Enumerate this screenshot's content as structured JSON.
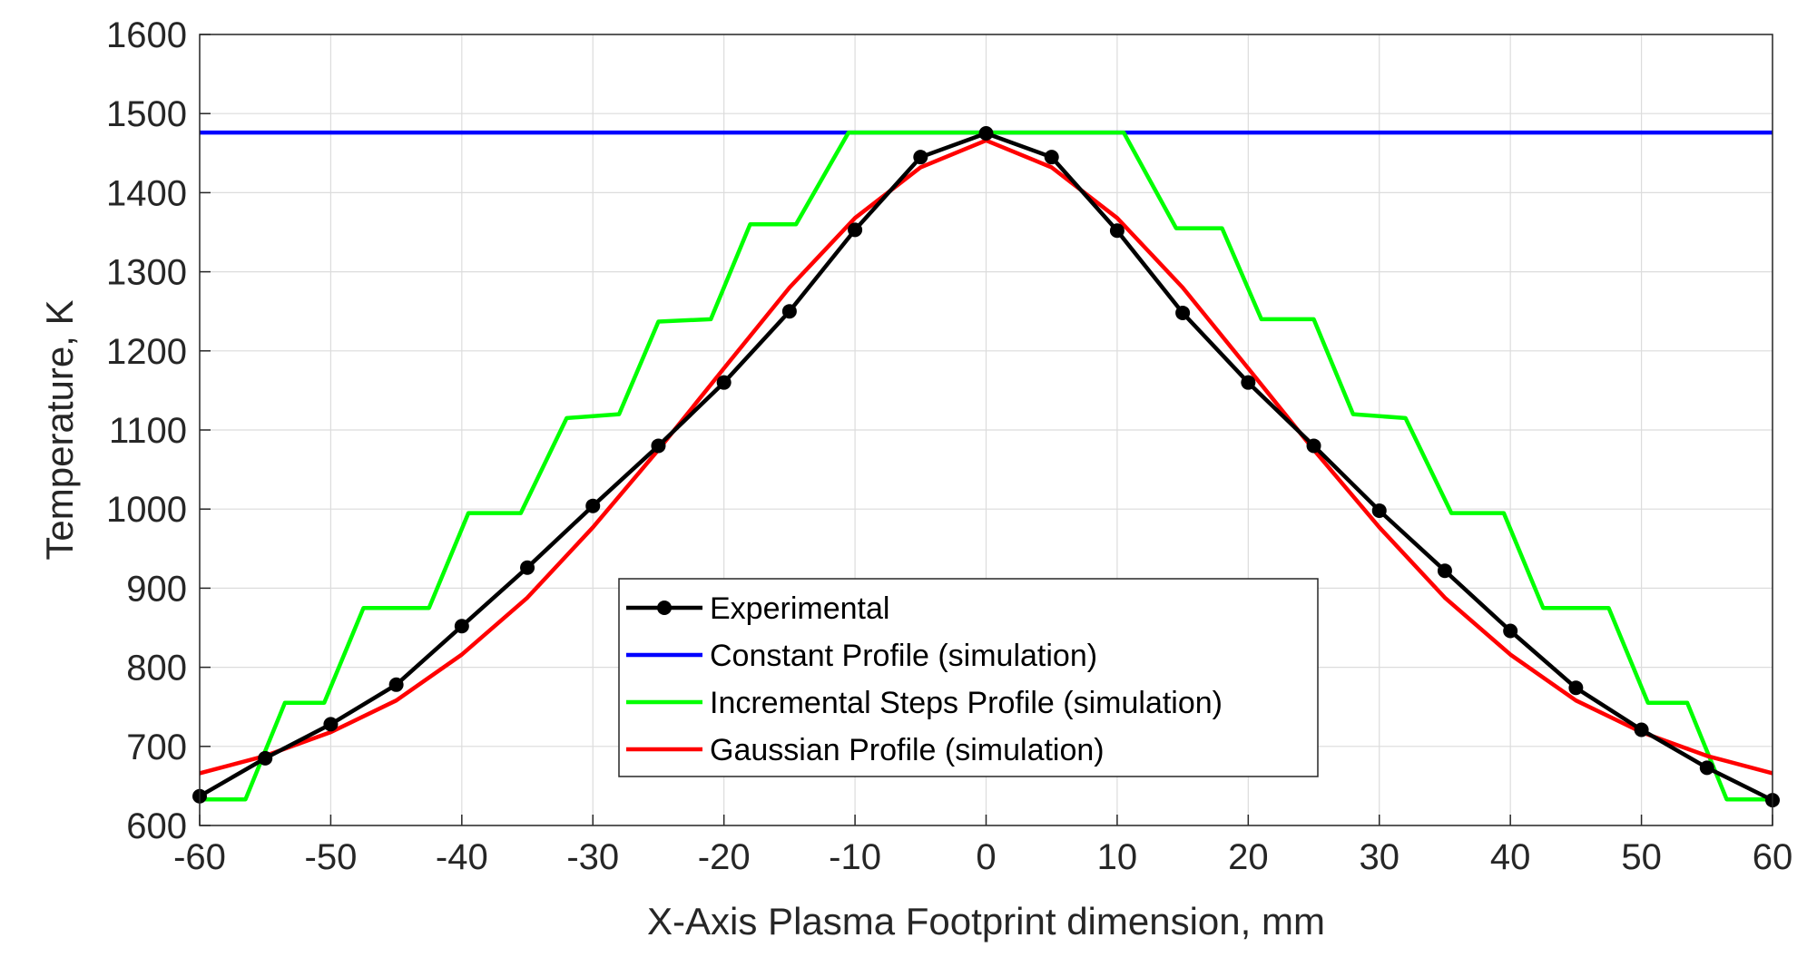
{
  "chart_data": {
    "type": "line",
    "title": "",
    "xlabel": "X-Axis Plasma Footprint dimension, mm",
    "ylabel": "Temperature, K",
    "xlim": [
      -60,
      60
    ],
    "ylim": [
      600,
      1600
    ],
    "xticks": [
      "-60",
      "-50",
      "-40",
      "-30",
      "-20",
      "-10",
      "0",
      "10",
      "20",
      "30",
      "40",
      "50",
      "60"
    ],
    "yticks": [
      "600",
      "700",
      "800",
      "900",
      "1000",
      "1100",
      "1200",
      "1300",
      "1400",
      "1500",
      "1600"
    ],
    "grid": true,
    "legend_position": "bottom-center",
    "series": [
      {
        "name": "Experimental",
        "color": "#000000",
        "marker": "circle",
        "x": [
          -60,
          -55,
          -50,
          -45,
          -40,
          -35,
          -30,
          -25,
          -20,
          -15,
          -10,
          -5,
          0,
          5,
          10,
          15,
          20,
          25,
          30,
          35,
          40,
          45,
          50,
          55,
          60
        ],
        "y": [
          637,
          685,
          728,
          778,
          852,
          926,
          1004,
          1080,
          1160,
          1250,
          1353,
          1445,
          1475,
          1445,
          1352,
          1248,
          1160,
          1080,
          998,
          922,
          846,
          774,
          721,
          673,
          632
        ]
      },
      {
        "name": "Constant Profile (simulation)",
        "color": "#0000ff",
        "marker": "none",
        "x": [
          -60,
          60
        ],
        "y": [
          1476,
          1476
        ]
      },
      {
        "name": "Incremental Steps Profile (simulation)",
        "color": "#00ff00",
        "marker": "none",
        "x": [
          -60,
          -56.5,
          -53.5,
          -50.5,
          -47.5,
          -42.5,
          -39.5,
          -35.5,
          -32,
          -28,
          -25,
          -21,
          -18,
          -14.5,
          -10.5,
          10.5,
          14.5,
          18,
          21,
          25,
          28,
          32,
          35.5,
          39.5,
          42.5,
          47.5,
          50.5,
          53.5,
          56.5,
          60
        ],
        "y": [
          633,
          633,
          755,
          755,
          875,
          875,
          995,
          995,
          1115,
          1120,
          1237,
          1240,
          1360,
          1360,
          1476,
          1476,
          1355,
          1355,
          1240,
          1240,
          1120,
          1115,
          995,
          995,
          875,
          875,
          755,
          755,
          633,
          633
        ]
      },
      {
        "name": "Gaussian Profile (simulation)",
        "color": "#ff0000",
        "marker": "none",
        "x": [
          -60,
          -55,
          -50,
          -45,
          -40,
          -35,
          -30,
          -25,
          -20,
          -15,
          -10,
          -5,
          0,
          5,
          10,
          15,
          20,
          25,
          30,
          35,
          40,
          45,
          50,
          55,
          60
        ],
        "y": [
          666,
          688,
          718,
          758,
          816,
          888,
          977,
          1075,
          1178,
          1280,
          1368,
          1432,
          1466,
          1432,
          1368,
          1280,
          1178,
          1075,
          977,
          888,
          816,
          758,
          718,
          688,
          666
        ]
      }
    ]
  }
}
